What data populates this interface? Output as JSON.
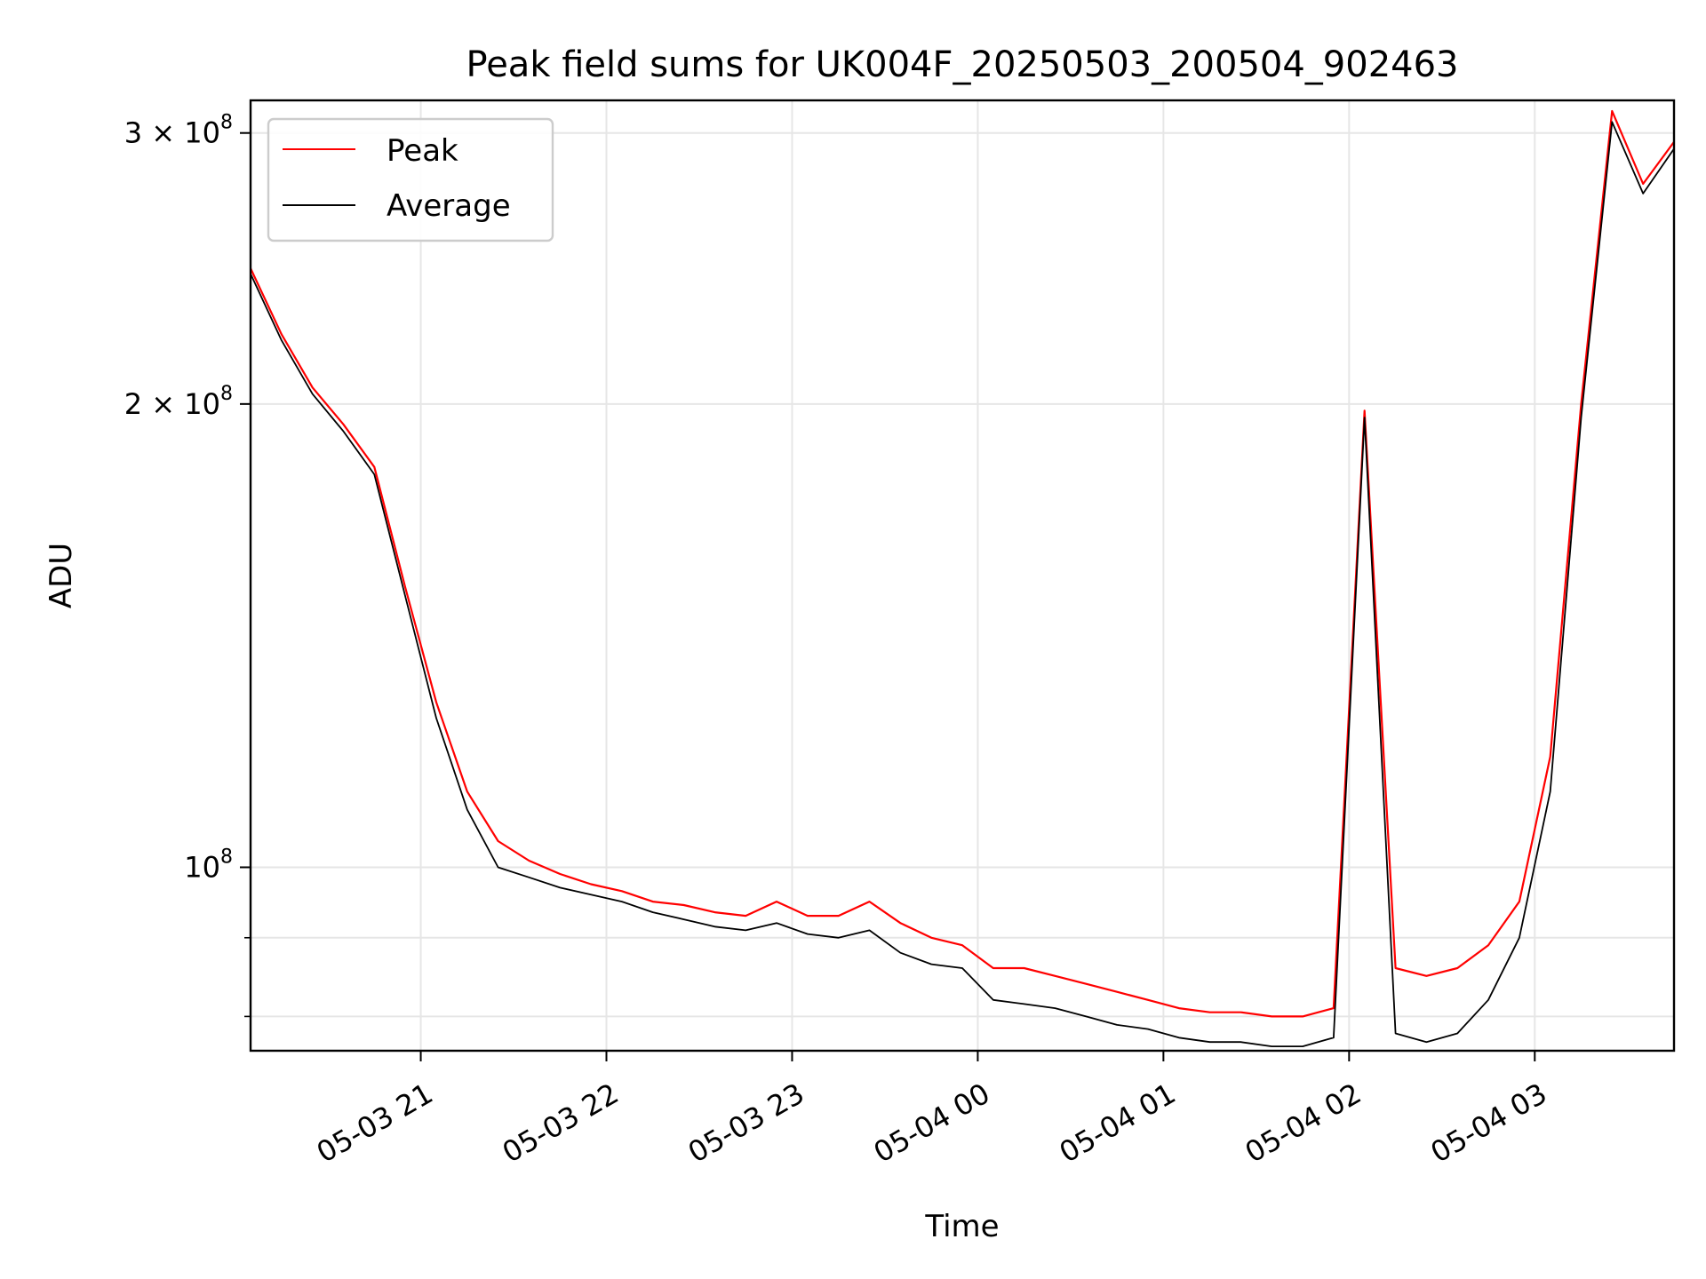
{
  "chart_data": {
    "type": "line",
    "title": "Peak field sums for UK004F_20250503_200504_902463",
    "xlabel": "Time",
    "ylabel": "ADU",
    "y_scale": "log",
    "ylim": [
      76000000,
      315000000
    ],
    "xlim": [
      "2025-05-03 20:05",
      "2025-05-04 03:45"
    ],
    "grid": true,
    "legend_position": "top-left",
    "x_ticks": [
      {
        "value": "2025-05-03 21:00",
        "label": "05-03 21"
      },
      {
        "value": "2025-05-03 22:00",
        "label": "05-03 22"
      },
      {
        "value": "2025-05-03 23:00",
        "label": "05-03 23"
      },
      {
        "value": "2025-05-04 00:00",
        "label": "05-04 00"
      },
      {
        "value": "2025-05-04 01:00",
        "label": "05-04 01"
      },
      {
        "value": "2025-05-04 02:00",
        "label": "05-04 02"
      },
      {
        "value": "2025-05-04 03:00",
        "label": "05-04 03"
      }
    ],
    "y_ticks_major": [
      {
        "value": 100000000,
        "base": "10",
        "exp": "8",
        "coef": ""
      },
      {
        "value": 200000000,
        "base": "10",
        "exp": "8",
        "coef": "2 × "
      },
      {
        "value": 300000000,
        "base": "10",
        "exp": "8",
        "coef": "3 × "
      }
    ],
    "y_ticks_minor": [
      80000000,
      90000000
    ],
    "series": [
      {
        "name": "Peak",
        "color": "#ff0000",
        "x": [
          "2025-05-03 20:05",
          "2025-05-03 20:15",
          "2025-05-03 20:25",
          "2025-05-03 20:35",
          "2025-05-03 20:45",
          "2025-05-03 20:55",
          "2025-05-03 21:05",
          "2025-05-03 21:15",
          "2025-05-03 21:25",
          "2025-05-03 21:35",
          "2025-05-03 21:45",
          "2025-05-03 21:55",
          "2025-05-03 22:05",
          "2025-05-03 22:15",
          "2025-05-03 22:25",
          "2025-05-03 22:35",
          "2025-05-03 22:45",
          "2025-05-03 22:55",
          "2025-05-03 23:05",
          "2025-05-03 23:15",
          "2025-05-03 23:25",
          "2025-05-03 23:35",
          "2025-05-03 23:45",
          "2025-05-03 23:55",
          "2025-05-04 00:05",
          "2025-05-04 00:15",
          "2025-05-04 00:25",
          "2025-05-04 00:35",
          "2025-05-04 00:45",
          "2025-05-04 00:55",
          "2025-05-04 01:05",
          "2025-05-04 01:15",
          "2025-05-04 01:25",
          "2025-05-04 01:35",
          "2025-05-04 01:45",
          "2025-05-04 01:55",
          "2025-05-04 02:05",
          "2025-05-04 02:15",
          "2025-05-04 02:25",
          "2025-05-04 02:35",
          "2025-05-04 02:45",
          "2025-05-04 02:55",
          "2025-05-04 03:05",
          "2025-05-04 03:15",
          "2025-05-04 03:25",
          "2025-05-04 03:35",
          "2025-05-04 03:45"
        ],
        "values": [
          245000000,
          222000000,
          205000000,
          194000000,
          182000000,
          152000000,
          128000000,
          112000000,
          104000000,
          101000000,
          99000000,
          97500000,
          96500000,
          95000000,
          94500000,
          93500000,
          93000000,
          95000000,
          93000000,
          93000000,
          95000000,
          92000000,
          90000000,
          89000000,
          86000000,
          86000000,
          85000000,
          84000000,
          83000000,
          82000000,
          81000000,
          80500000,
          80500000,
          80000000,
          80000000,
          81000000,
          198000000,
          86000000,
          85000000,
          86000000,
          89000000,
          95000000,
          118000000,
          200000000,
          310000000,
          278000000,
          296000000
        ]
      },
      {
        "name": "Average",
        "color": "#000000",
        "x": [
          "2025-05-03 20:05",
          "2025-05-03 20:15",
          "2025-05-03 20:25",
          "2025-05-03 20:35",
          "2025-05-03 20:45",
          "2025-05-03 20:55",
          "2025-05-03 21:05",
          "2025-05-03 21:15",
          "2025-05-03 21:25",
          "2025-05-03 21:35",
          "2025-05-03 21:45",
          "2025-05-03 21:55",
          "2025-05-03 22:05",
          "2025-05-03 22:15",
          "2025-05-03 22:25",
          "2025-05-03 22:35",
          "2025-05-03 22:45",
          "2025-05-03 22:55",
          "2025-05-03 23:05",
          "2025-05-03 23:15",
          "2025-05-03 23:25",
          "2025-05-03 23:35",
          "2025-05-03 23:45",
          "2025-05-03 23:55",
          "2025-05-04 00:05",
          "2025-05-04 00:15",
          "2025-05-04 00:25",
          "2025-05-04 00:35",
          "2025-05-04 00:45",
          "2025-05-04 00:55",
          "2025-05-04 01:05",
          "2025-05-04 01:15",
          "2025-05-04 01:25",
          "2025-05-04 01:35",
          "2025-05-04 01:45",
          "2025-05-04 01:55",
          "2025-05-04 02:05",
          "2025-05-04 02:15",
          "2025-05-04 02:25",
          "2025-05-04 02:35",
          "2025-05-04 02:45",
          "2025-05-04 02:55",
          "2025-05-04 03:05",
          "2025-05-04 03:15",
          "2025-05-04 03:25",
          "2025-05-04 03:35",
          "2025-05-04 03:45"
        ],
        "values": [
          243000000,
          220000000,
          203000000,
          192000000,
          180000000,
          150000000,
          125000000,
          109000000,
          100000000,
          98500000,
          97000000,
          96000000,
          95000000,
          93500000,
          92500000,
          91500000,
          91000000,
          92000000,
          90500000,
          90000000,
          91000000,
          88000000,
          86500000,
          86000000,
          82000000,
          81500000,
          81000000,
          80000000,
          79000000,
          78500000,
          77500000,
          77000000,
          77000000,
          76500000,
          76500000,
          77500000,
          196000000,
          78000000,
          77000000,
          78000000,
          82000000,
          90000000,
          112000000,
          196000000,
          305000000,
          274000000,
          293000000
        ]
      }
    ]
  }
}
